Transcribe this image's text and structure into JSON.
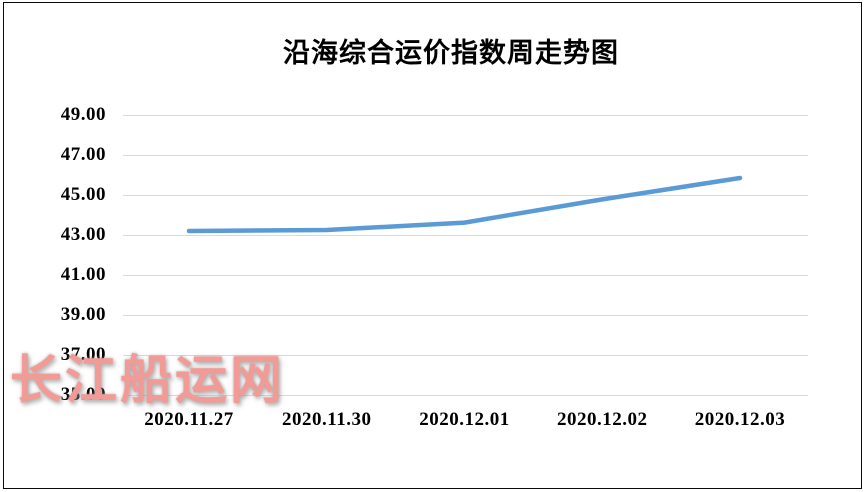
{
  "watermark": {
    "text": "长江船运网",
    "color": "#f29a96"
  },
  "frame": {
    "border_color": "#0a0a0a",
    "background": "#ffffff"
  },
  "chart_data": {
    "type": "line",
    "title": "沿海综合运价指数周走势图",
    "categories": [
      "2020.11.27",
      "2020.11.30",
      "2020.12.01",
      "2020.12.02",
      "2020.12.03"
    ],
    "series": [
      {
        "name": "沿海综合运价指数",
        "values": [
          43.2,
          43.25,
          43.62,
          44.78,
          45.85
        ],
        "color": "#5b9bd5",
        "line_width": 4.5
      }
    ],
    "xlabel": "",
    "ylabel": "",
    "ylim": [
      35,
      49
    ],
    "ytick_step": 2,
    "ytick_labels": [
      "35.00",
      "37.00",
      "39.00",
      "41.00",
      "43.00",
      "45.00",
      "47.00",
      "49.00"
    ],
    "grid": true,
    "gridline_color": "#d9d9d9",
    "legend_position": "none",
    "text_color": "#000000"
  }
}
